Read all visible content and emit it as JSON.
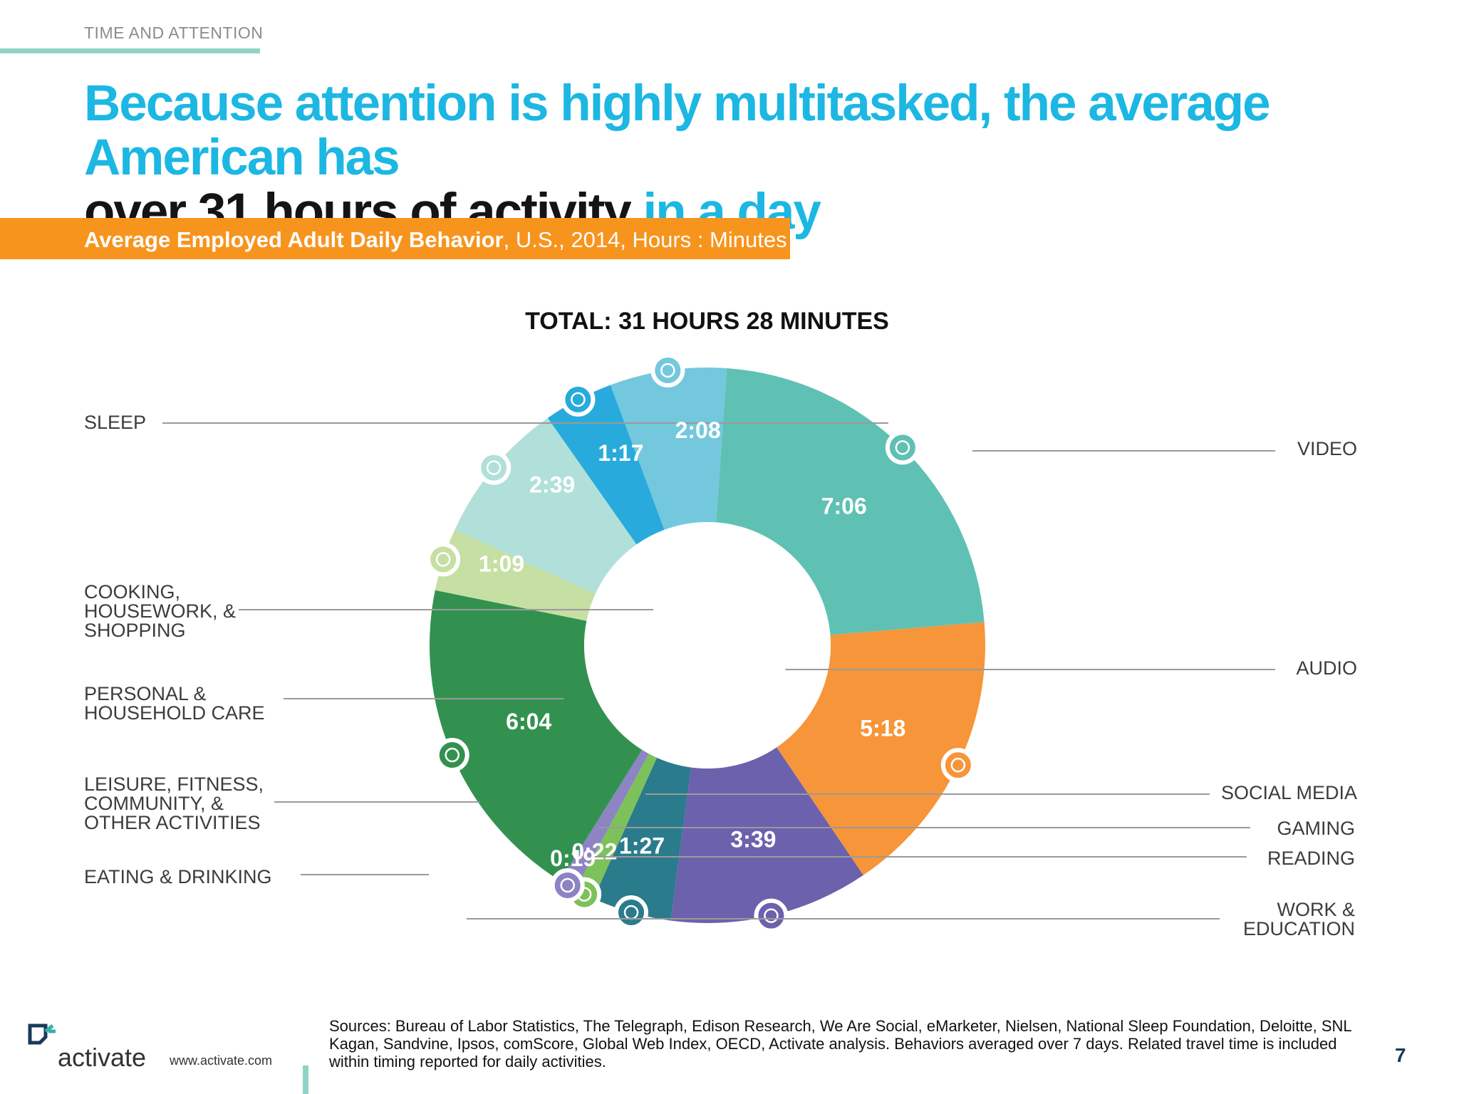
{
  "section_tag": "TIME AND ATTENTION",
  "headline": {
    "part1": "Because attention is highly multitasked, the average American has",
    "part2": "over 31 hours of activity",
    "part3": "in a day"
  },
  "subtitle": {
    "bold": "Average Employed Adult Daily Behavior",
    "rest": ", U.S., 2014, Hours : Minutes"
  },
  "chart_data": {
    "type": "pie",
    "title": "TOTAL: 31 HOURS 28 MINUTES",
    "donut": true,
    "slices": [
      {
        "label": "SLEEP",
        "display": "7:06",
        "minutes": 426,
        "color": "#5fc1b3",
        "icon": "bed-icon"
      },
      {
        "label": "VIDEO",
        "display": "5:18",
        "minutes": 318,
        "color": "#f7953a",
        "icon": "film-icon"
      },
      {
        "label": "AUDIO",
        "display": "3:39",
        "minutes": 219,
        "color": "#6c61ad",
        "icon": "speaker-icon"
      },
      {
        "label": "SOCIAL MEDIA",
        "display": "1:27",
        "minutes": 87,
        "color": "#2a7b8c",
        "icon": "share-icon"
      },
      {
        "label": "GAMING",
        "display": "0:22",
        "minutes": 22,
        "color": "#7dc15a",
        "icon": "gamepad-icon"
      },
      {
        "label": "READING",
        "display": "0:19",
        "minutes": 19,
        "color": "#8d84c4",
        "icon": "book-icon"
      },
      {
        "label": "WORK &\nEDUCATION",
        "display": "6:04",
        "minutes": 364,
        "color": "#339150",
        "icon": "presentation-icon"
      },
      {
        "label": "EATING & DRINKING",
        "display": "1:09",
        "minutes": 69,
        "color": "#c6dfa3",
        "icon": "dining-icon"
      },
      {
        "label": "LEISURE, FITNESS,\nCOMMUNITY, &\nOTHER ACTIVITIES",
        "display": "2:39",
        "minutes": 159,
        "color": "#b1e0da",
        "icon": "bench-press-icon"
      },
      {
        "label": "PERSONAL &\nHOUSEHOLD CARE",
        "display": "1:17",
        "minutes": 77,
        "color": "#28abdc",
        "icon": "family-icon"
      },
      {
        "label": "COOKING,\nHOUSEWORK, &\nSHOPPING",
        "display": "2:08",
        "minutes": 128,
        "color": "#74c8de",
        "icon": "cleaning-icon"
      }
    ]
  },
  "footer": {
    "logo_text": "activate",
    "url": "www.activate.com",
    "sources": "Sources: Bureau of Labor Statistics, The Telegraph, Edison Research, We Are Social, eMarketer, Nielsen, National Sleep Foundation, Deloitte, SNL Kagan, Sandvine, Ipsos, comScore, Global Web Index, OECD, Activate analysis.  Behaviors averaged over 7 days. Related travel time is included within timing reported for daily activities.",
    "page_number": "7"
  },
  "brand_colors": {
    "accent_blue": "#1cb7e3",
    "orange": "#f7941e",
    "teal_rule": "#8fd3c6"
  }
}
